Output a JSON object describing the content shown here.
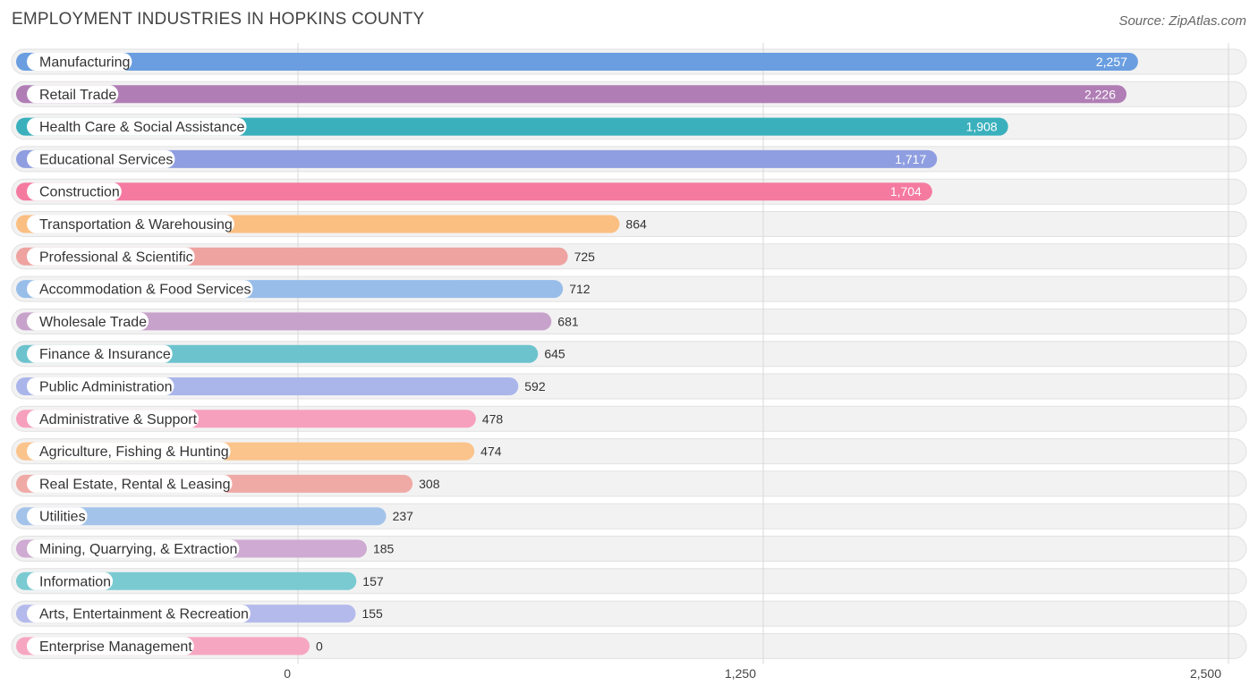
{
  "title": "EMPLOYMENT INDUSTRIES IN HOPKINS COUNTY",
  "source": "Source: ZipAtlas.com",
  "chart_data": {
    "type": "bar",
    "orientation": "horizontal",
    "title": "EMPLOYMENT INDUSTRIES IN HOPKINS COUNTY",
    "xlabel": "",
    "ylabel": "",
    "xlim": [
      0,
      2500
    ],
    "ticks": [
      0,
      1250,
      2500
    ],
    "tick_labels": [
      "0",
      "1,250",
      "2,500"
    ],
    "grid": true,
    "categories": [
      "Manufacturing",
      "Retail Trade",
      "Health Care & Social Assistance",
      "Educational Services",
      "Construction",
      "Transportation & Warehousing",
      "Professional & Scientific",
      "Accommodation & Food Services",
      "Wholesale Trade",
      "Finance & Insurance",
      "Public Administration",
      "Administrative & Support",
      "Agriculture, Fishing & Hunting",
      "Real Estate, Rental & Leasing",
      "Utilities",
      "Mining, Quarrying, & Extraction",
      "Information",
      "Arts, Entertainment & Recreation",
      "Enterprise Management"
    ],
    "values": [
      2257,
      2226,
      1908,
      1717,
      1704,
      864,
      725,
      712,
      681,
      645,
      592,
      478,
      474,
      308,
      237,
      185,
      157,
      155,
      0
    ],
    "value_labels": [
      "2,257",
      "2,226",
      "1,908",
      "1,717",
      "1,704",
      "864",
      "725",
      "712",
      "681",
      "645",
      "592",
      "478",
      "474",
      "308",
      "237",
      "185",
      "157",
      "155",
      "0"
    ],
    "colors": [
      "#6a9ee0",
      "#b07db5",
      "#3ab0bd",
      "#8f9ee0",
      "#f57aa0",
      "#fbbf82",
      "#eea3a0",
      "#98bde9",
      "#c7a3cb",
      "#6dc3cd",
      "#aab5ea",
      "#f7a0bd",
      "#fbc48c",
      "#f0aaa6",
      "#a4c3ea",
      "#cfaad2",
      "#7acad2",
      "#b4baeb",
      "#f7a6c2"
    ]
  }
}
